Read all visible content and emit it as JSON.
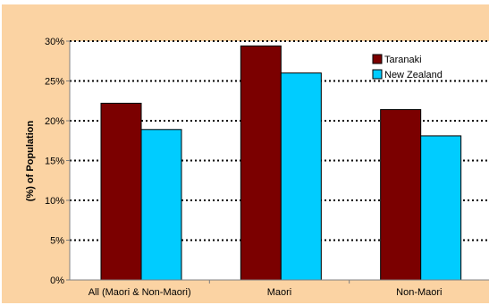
{
  "chart_data": {
    "type": "bar",
    "title": "",
    "xlabel": "",
    "ylabel": "(%) of Population",
    "categories": [
      "All (Maori & Non-Maori)",
      "Maori",
      "Non-Maori"
    ],
    "series": [
      {
        "name": "Taranaki",
        "values": [
          22.2,
          29.4,
          21.4
        ],
        "color": "#7b0000"
      },
      {
        "name": "New Zealand",
        "values": [
          18.9,
          26.0,
          18.1
        ],
        "color": "#00ccff"
      }
    ],
    "ylim": [
      0,
      30
    ],
    "yticks": [
      "0%",
      "5%",
      "10%",
      "15%",
      "20%",
      "25%",
      "30%"
    ],
    "ytick_values": [
      0,
      5,
      10,
      15,
      20,
      25,
      30
    ],
    "grid": true,
    "legend_position": "top-right",
    "colors": {
      "background": "#fbd3a3",
      "plot_area": "#ffffff",
      "grid": "#000000"
    }
  }
}
